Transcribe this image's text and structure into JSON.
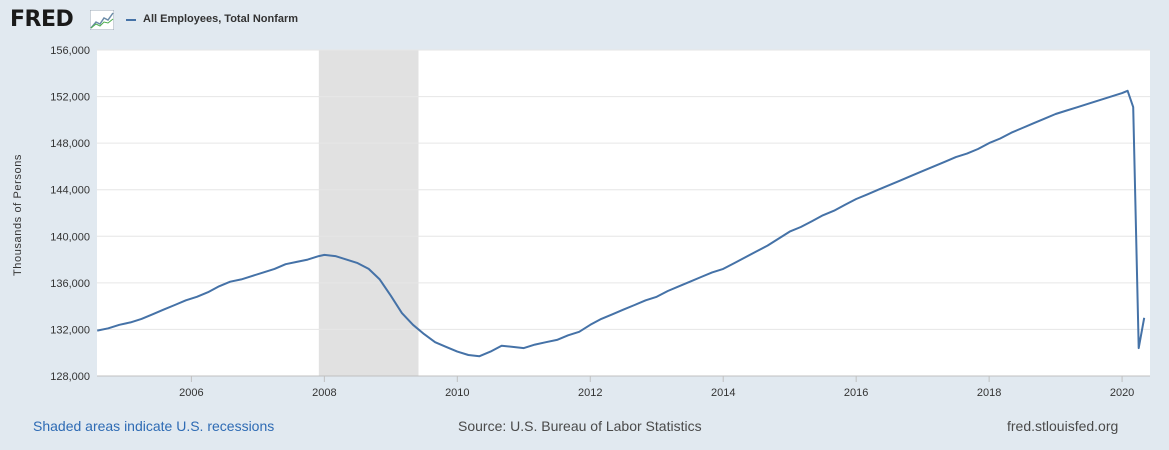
{
  "header": {
    "logo_text": "FRED",
    "logo_icon": "line-chart-icon",
    "series_name": "All Employees, Total Nonfarm"
  },
  "footer": {
    "recession_note": "Shaded areas indicate U.S. recessions",
    "source": "Source: U.S. Bureau of Labor Statistics",
    "site": "fred.stlouisfed.org"
  },
  "colors": {
    "line": "#4572a7",
    "recession_band": "#e1e1e1",
    "plot_bg": "#ffffff",
    "page_bg": "#e1e9f0",
    "link": "#2e6bb4"
  },
  "chart_data": {
    "type": "line",
    "title": "",
    "xlabel": "",
    "ylabel": "Thousands of Persons",
    "grid": "horizontal",
    "legend": "top-left",
    "ylim": [
      128000,
      156000
    ],
    "xlim": [
      2004.58,
      2020.42
    ],
    "y_ticks": [
      {
        "value": 128000,
        "label": "128,000"
      },
      {
        "value": 132000,
        "label": "132,000"
      },
      {
        "value": 136000,
        "label": "136,000"
      },
      {
        "value": 140000,
        "label": "140,000"
      },
      {
        "value": 144000,
        "label": "144,000"
      },
      {
        "value": 148000,
        "label": "148,000"
      },
      {
        "value": 152000,
        "label": "152,000"
      },
      {
        "value": 156000,
        "label": "156,000"
      }
    ],
    "x_ticks": [
      {
        "value": 2006,
        "label": "2006"
      },
      {
        "value": 2008,
        "label": "2008"
      },
      {
        "value": 2010,
        "label": "2010"
      },
      {
        "value": 2012,
        "label": "2012"
      },
      {
        "value": 2014,
        "label": "2014"
      },
      {
        "value": 2016,
        "label": "2016"
      },
      {
        "value": 2018,
        "label": "2018"
      },
      {
        "value": 2020,
        "label": "2020"
      }
    ],
    "recessions": [
      {
        "start": "2007-12",
        "end": "2009-06"
      }
    ],
    "series": [
      {
        "points": [
          [
            "2004-08",
            131900
          ],
          [
            "2004-10",
            132100
          ],
          [
            "2004-12",
            132400
          ],
          [
            "2005-02",
            132600
          ],
          [
            "2005-04",
            132900
          ],
          [
            "2005-06",
            133300
          ],
          [
            "2005-08",
            133700
          ],
          [
            "2005-10",
            134100
          ],
          [
            "2005-12",
            134500
          ],
          [
            "2006-02",
            134800
          ],
          [
            "2006-04",
            135200
          ],
          [
            "2006-06",
            135700
          ],
          [
            "2006-08",
            136100
          ],
          [
            "2006-10",
            136300
          ],
          [
            "2006-12",
            136600
          ],
          [
            "2007-02",
            136900
          ],
          [
            "2007-04",
            137200
          ],
          [
            "2007-06",
            137600
          ],
          [
            "2007-08",
            137800
          ],
          [
            "2007-10",
            138000
          ],
          [
            "2007-12",
            138300
          ],
          [
            "2008-01",
            138400
          ],
          [
            "2008-03",
            138300
          ],
          [
            "2008-05",
            138000
          ],
          [
            "2008-07",
            137700
          ],
          [
            "2008-09",
            137200
          ],
          [
            "2008-11",
            136300
          ],
          [
            "2009-01",
            134900
          ],
          [
            "2009-03",
            133400
          ],
          [
            "2009-05",
            132400
          ],
          [
            "2009-07",
            131600
          ],
          [
            "2009-09",
            130900
          ],
          [
            "2009-11",
            130500
          ],
          [
            "2010-01",
            130100
          ],
          [
            "2010-03",
            129800
          ],
          [
            "2010-05",
            129700
          ],
          [
            "2010-07",
            130100
          ],
          [
            "2010-09",
            130600
          ],
          [
            "2010-11",
            130500
          ],
          [
            "2011-01",
            130400
          ],
          [
            "2011-03",
            130700
          ],
          [
            "2011-05",
            130900
          ],
          [
            "2011-07",
            131100
          ],
          [
            "2011-09",
            131500
          ],
          [
            "2011-11",
            131800
          ],
          [
            "2012-01",
            132400
          ],
          [
            "2012-03",
            132900
          ],
          [
            "2012-05",
            133300
          ],
          [
            "2012-07",
            133700
          ],
          [
            "2012-09",
            134100
          ],
          [
            "2012-11",
            134500
          ],
          [
            "2013-01",
            134800
          ],
          [
            "2013-03",
            135300
          ],
          [
            "2013-05",
            135700
          ],
          [
            "2013-07",
            136100
          ],
          [
            "2013-09",
            136500
          ],
          [
            "2013-11",
            136900
          ],
          [
            "2014-01",
            137200
          ],
          [
            "2014-03",
            137700
          ],
          [
            "2014-05",
            138200
          ],
          [
            "2014-07",
            138700
          ],
          [
            "2014-09",
            139200
          ],
          [
            "2014-11",
            139800
          ],
          [
            "2015-01",
            140400
          ],
          [
            "2015-03",
            140800
          ],
          [
            "2015-05",
            141300
          ],
          [
            "2015-07",
            141800
          ],
          [
            "2015-09",
            142200
          ],
          [
            "2015-11",
            142700
          ],
          [
            "2016-01",
            143200
          ],
          [
            "2016-03",
            143600
          ],
          [
            "2016-05",
            144000
          ],
          [
            "2016-07",
            144400
          ],
          [
            "2016-09",
            144800
          ],
          [
            "2016-11",
            145200
          ],
          [
            "2017-01",
            145600
          ],
          [
            "2017-03",
            146000
          ],
          [
            "2017-05",
            146400
          ],
          [
            "2017-07",
            146800
          ],
          [
            "2017-09",
            147100
          ],
          [
            "2017-11",
            147500
          ],
          [
            "2018-01",
            148000
          ],
          [
            "2018-03",
            148400
          ],
          [
            "2018-05",
            148900
          ],
          [
            "2018-07",
            149300
          ],
          [
            "2018-09",
            149700
          ],
          [
            "2018-11",
            150100
          ],
          [
            "2019-01",
            150500
          ],
          [
            "2019-03",
            150800
          ],
          [
            "2019-05",
            151100
          ],
          [
            "2019-07",
            151400
          ],
          [
            "2019-09",
            151700
          ],
          [
            "2019-11",
            152000
          ],
          [
            "2020-01",
            152300
          ],
          [
            "2020-02",
            152500
          ],
          [
            "2020-03",
            151100
          ],
          [
            "2020-04",
            130400
          ],
          [
            "2020-05",
            133000
          ]
        ]
      }
    ]
  }
}
